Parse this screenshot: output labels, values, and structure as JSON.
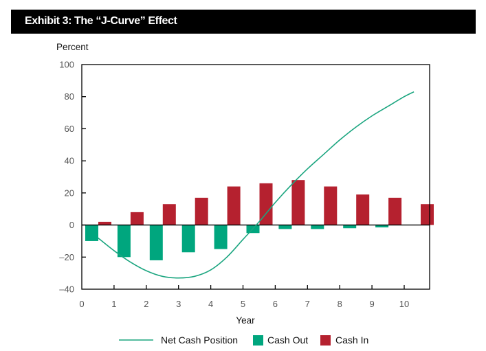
{
  "header": {
    "title": "Exhibit 3: The “J-Curve” Effect"
  },
  "chart_data": {
    "type": "bar",
    "title": "Exhibit 3: The “J-Curve” Effect",
    "xlabel": "Year",
    "ylabel": "Percent",
    "xlim": [
      0,
      10.8
    ],
    "ylim": [
      -40,
      100
    ],
    "x_ticks": [
      0,
      1,
      2,
      3,
      4,
      5,
      6,
      7,
      8,
      9,
      10
    ],
    "y_ticks": [
      -40,
      -20,
      0,
      20,
      40,
      60,
      80,
      100
    ],
    "y_tick_labels": [
      "–40",
      "–20",
      "0",
      "20",
      "40",
      "60",
      "80",
      "100"
    ],
    "grid": false,
    "legend_position": "bottom",
    "series": [
      {
        "name": "Cash Out",
        "type": "bar",
        "color": "#00a67e",
        "x": [
          0,
          1,
          2,
          3,
          4,
          5,
          6,
          7,
          8,
          9
        ],
        "values": [
          -10,
          -20,
          -22,
          -17,
          -15,
          -5,
          -2.5,
          -2.5,
          -2,
          -1.5
        ]
      },
      {
        "name": "Cash In",
        "type": "bar",
        "color": "#b5212f",
        "x": [
          0,
          1,
          2,
          3,
          4,
          5,
          6,
          7,
          8,
          9,
          10
        ],
        "values": [
          2,
          8,
          13,
          17,
          24,
          26,
          28,
          24,
          19,
          17,
          13
        ]
      },
      {
        "name": "Net Cash Position",
        "type": "line",
        "color": "#1aa57f",
        "x": [
          0.5,
          1,
          1.5,
          2,
          2.5,
          3,
          3.5,
          4,
          4.5,
          5,
          5.5,
          6,
          6.5,
          7,
          7.5,
          8,
          8.5,
          9,
          9.5,
          10,
          10.3
        ],
        "values": [
          -8,
          -16,
          -23,
          -28.5,
          -32,
          -33,
          -32,
          -28,
          -20,
          -9,
          2,
          14,
          25,
          35,
          44,
          53,
          61,
          68,
          74,
          80,
          83
        ]
      }
    ]
  }
}
